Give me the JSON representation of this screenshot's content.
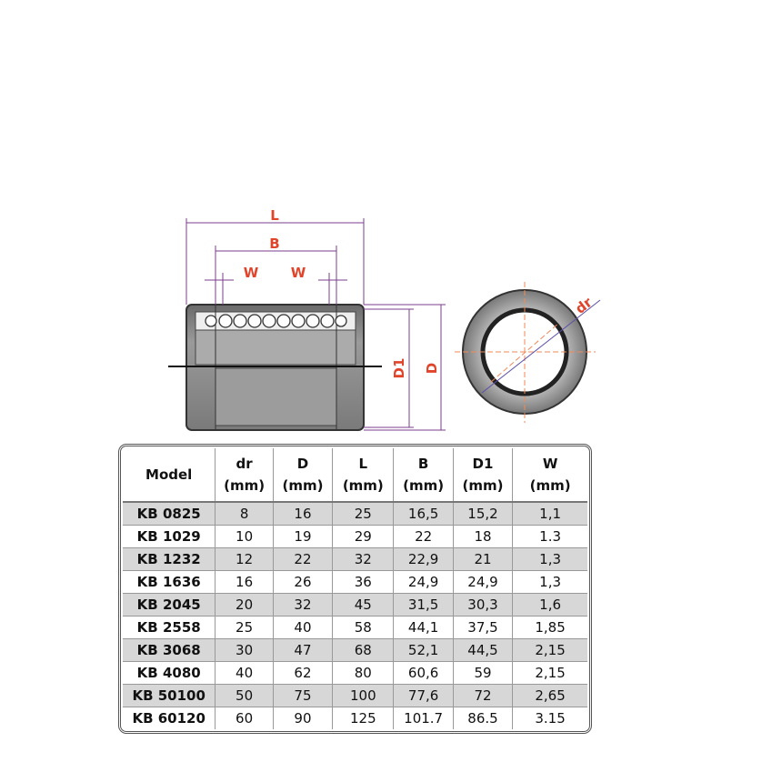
{
  "drawing": {
    "labels": {
      "L": "L",
      "B": "B",
      "W_left": "W",
      "W_right": "W",
      "D1": "D1",
      "D": "D",
      "dr": "dr"
    }
  },
  "table": {
    "header": [
      {
        "name": "Model"
      },
      {
        "name": "dr",
        "unit": "(mm)"
      },
      {
        "name": "D",
        "unit": "(mm)"
      },
      {
        "name": "L",
        "unit": "(mm)"
      },
      {
        "name": "B",
        "unit": "(mm)"
      },
      {
        "name": "D1",
        "unit": "(mm)"
      },
      {
        "name": "W",
        "unit": "(mm)"
      }
    ],
    "rows": [
      [
        "KB 0825",
        "8",
        "16",
        "25",
        "16,5",
        "15,2",
        "1,1"
      ],
      [
        "KB 1029",
        "10",
        "19",
        "29",
        "22",
        "18",
        "1.3"
      ],
      [
        "KB 1232",
        "12",
        "22",
        "32",
        "22,9",
        "21",
        "1,3"
      ],
      [
        "KB 1636",
        "16",
        "26",
        "36",
        "24,9",
        "24,9",
        "1,3"
      ],
      [
        "KB 2045",
        "20",
        "32",
        "45",
        "31,5",
        "30,3",
        "1,6"
      ],
      [
        "KB 2558",
        "25",
        "40",
        "58",
        "44,1",
        "37,5",
        "1,85"
      ],
      [
        "KB 3068",
        "30",
        "47",
        "68",
        "52,1",
        "44,5",
        "2,15"
      ],
      [
        "KB 4080",
        "40",
        "62",
        "80",
        "60,6",
        "59",
        "2,15"
      ],
      [
        "KB 50100",
        "50",
        "75",
        "100",
        "77,6",
        "72",
        "2,65"
      ],
      [
        "KB 60120",
        "60",
        "90",
        "125",
        "101.7",
        "86.5",
        "3.15"
      ]
    ]
  }
}
